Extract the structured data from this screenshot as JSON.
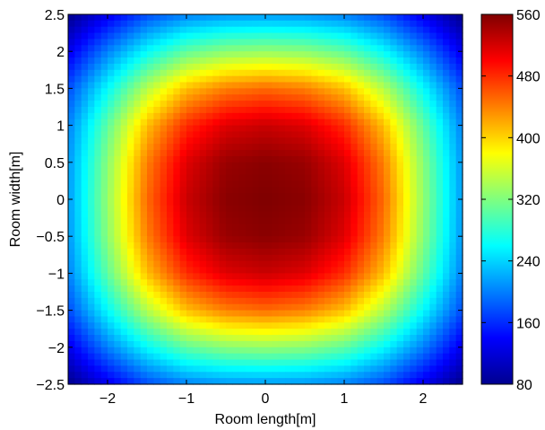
{
  "chart_data": {
    "type": "heatmap",
    "title": "",
    "xlabel": "Room length[m]",
    "ylabel": "Room width[m]",
    "xlim": [
      -2.5,
      2.5
    ],
    "ylim": [
      -2.5,
      2.5
    ],
    "xticks": [
      -2,
      -1,
      0,
      1,
      2
    ],
    "xtick_labels": [
      "−2",
      "−1",
      "0",
      "1",
      "2"
    ],
    "yticks": [
      -2.5,
      -2,
      -1.5,
      -1,
      -0.5,
      0,
      0.5,
      1,
      1.5,
      2,
      2.5
    ],
    "ytick_labels": [
      "−2.5",
      "−2",
      "−1.5",
      "−1",
      "−0.5",
      "0",
      "0.5",
      "1",
      "1.5",
      "2",
      "2.5"
    ],
    "grid": false,
    "colormap": "jet",
    "colorbar": {
      "range": [
        80,
        560
      ],
      "ticks": [
        80,
        160,
        240,
        320,
        400,
        480,
        560
      ],
      "tick_labels": [
        "80",
        "160",
        "240",
        "320",
        "400",
        "480",
        "560"
      ]
    },
    "field": {
      "description_values": "Illuminance distribution sampled on a grid; peak near the room center, falling toward the corners.",
      "x": [
        -2.5,
        -2.0,
        -1.5,
        -1.0,
        -0.5,
        0.0,
        0.5,
        1.0,
        1.5,
        2.0,
        2.5
      ],
      "y": [
        2.5,
        2.0,
        1.5,
        1.0,
        0.5,
        0.0,
        -0.5,
        -1.0,
        -1.5,
        -2.0,
        -2.5
      ],
      "z": [
        [
          85,
          130,
          175,
          200,
          210,
          212,
          210,
          200,
          175,
          130,
          85
        ],
        [
          130,
          200,
          260,
          305,
          325,
          330,
          325,
          305,
          260,
          200,
          130
        ],
        [
          175,
          260,
          345,
          410,
          440,
          450,
          440,
          410,
          345,
          260,
          175
        ],
        [
          200,
          305,
          410,
          480,
          515,
          525,
          515,
          480,
          410,
          305,
          200
        ],
        [
          210,
          325,
          440,
          515,
          548,
          555,
          548,
          515,
          440,
          325,
          210
        ],
        [
          212,
          330,
          450,
          525,
          555,
          560,
          555,
          525,
          450,
          330,
          212
        ],
        [
          210,
          325,
          440,
          515,
          548,
          555,
          548,
          515,
          440,
          325,
          210
        ],
        [
          200,
          305,
          410,
          480,
          515,
          525,
          515,
          480,
          410,
          305,
          200
        ],
        [
          175,
          260,
          345,
          410,
          440,
          450,
          440,
          410,
          345,
          260,
          175
        ],
        [
          130,
          200,
          260,
          305,
          325,
          330,
          325,
          305,
          260,
          200,
          130
        ],
        [
          85,
          130,
          175,
          200,
          210,
          212,
          210,
          200,
          175,
          130,
          85
        ]
      ]
    }
  }
}
